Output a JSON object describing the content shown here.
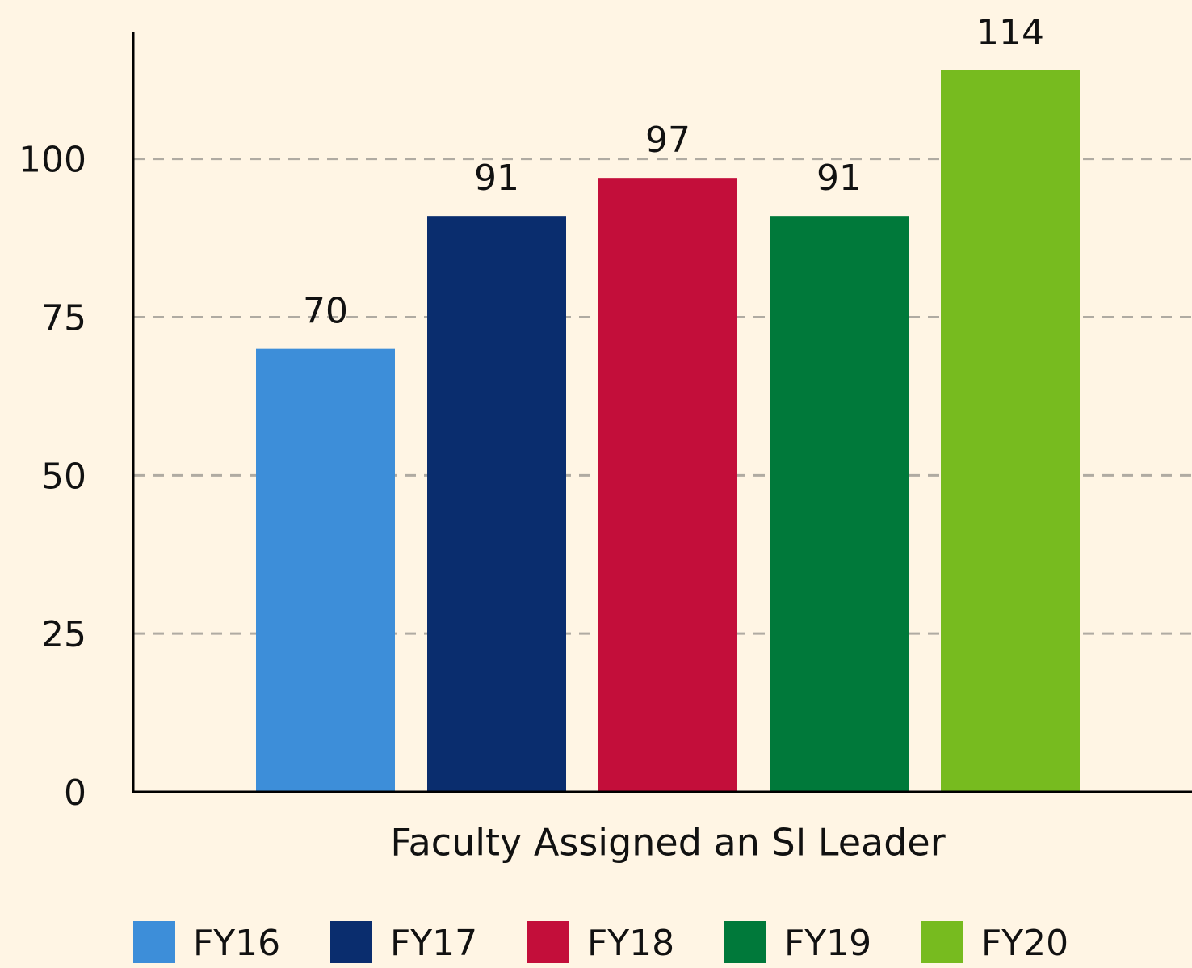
{
  "chart_data": {
    "type": "bar",
    "categories": [
      "Faculty Assigned an SI Leader"
    ],
    "series": [
      {
        "name": "FY16",
        "color": "#3d8ed9",
        "values": [
          70
        ]
      },
      {
        "name": "FY17",
        "color": "#0a2d6e",
        "values": [
          91
        ]
      },
      {
        "name": "FY18",
        "color": "#c30e3a",
        "values": [
          97
        ]
      },
      {
        "name": "FY19",
        "color": "#00793a",
        "values": [
          91
        ]
      },
      {
        "name": "FY20",
        "color": "#77bb1f",
        "values": [
          114
        ]
      }
    ],
    "ylim": [
      0,
      120
    ],
    "yticks": [
      0,
      25,
      50,
      75,
      100
    ],
    "grid": true,
    "legend": "bottom"
  }
}
